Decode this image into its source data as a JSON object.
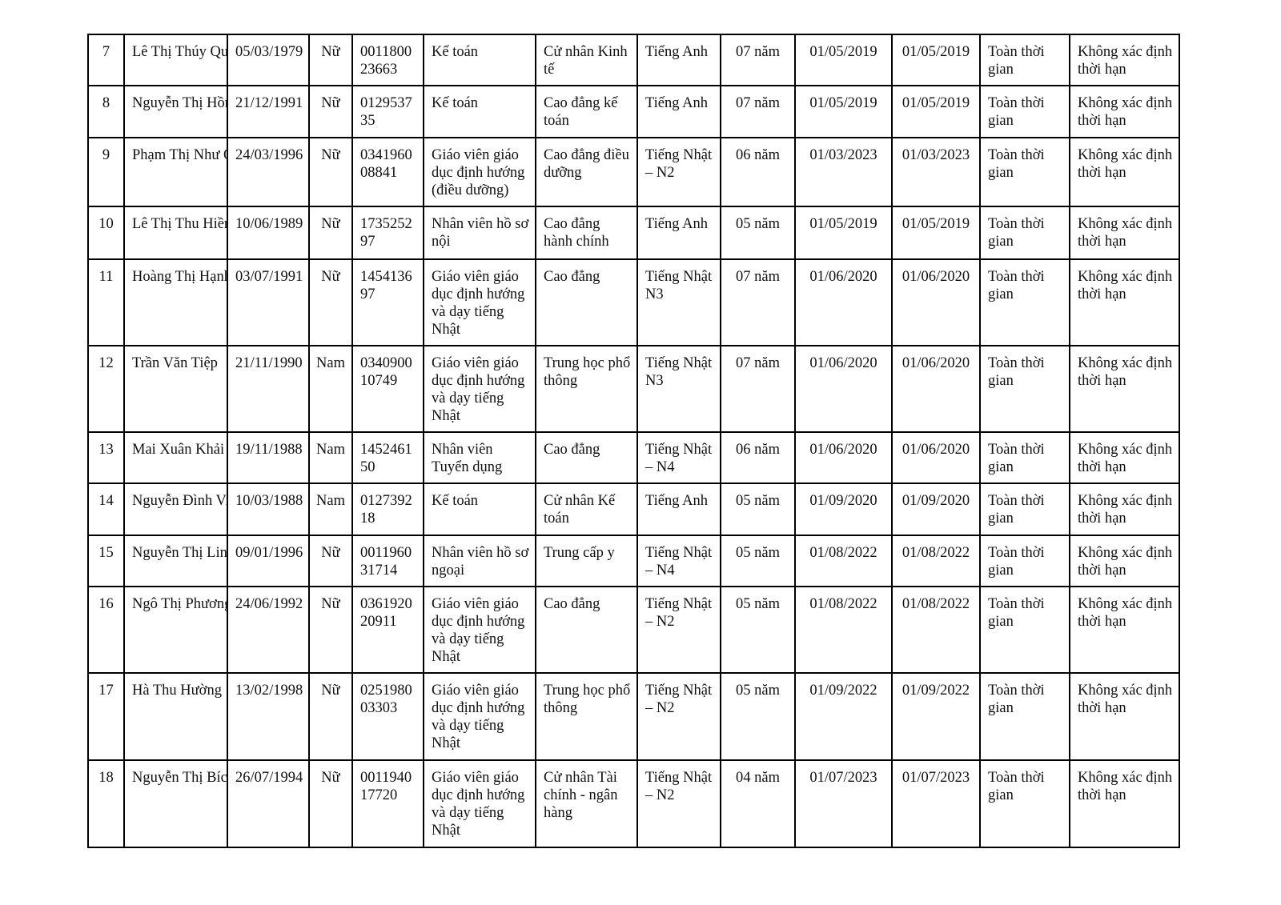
{
  "rows": [
    {
      "stt": "7",
      "name": "Lê Thị Thúy Quỳnh",
      "dob": "05/03/1979",
      "gender": "Nữ",
      "id": "0011800 23663",
      "position": "Kế toán",
      "degree": "Cử nhân Kinh tế",
      "language": "Tiếng Anh",
      "experience": "07 năm",
      "start": "01/05/2019",
      "contract": "01/05/2019",
      "type": "Toàn thời gian",
      "term": "Không xác định thời hạn"
    },
    {
      "stt": "8",
      "name": "Nguyễn Thị Hồng Ngọc",
      "dob": "21/12/1991",
      "gender": "Nữ",
      "id": "0129537 35",
      "position": "Kế toán",
      "degree": "Cao đẳng kế toán",
      "language": "Tiếng Anh",
      "experience": "07 năm",
      "start": "01/05/2019",
      "contract": "01/05/2019",
      "type": "Toàn thời gian",
      "term": "Không xác định thời hạn"
    },
    {
      "stt": "9",
      "name": "Phạm Thị Như Quỳnh",
      "dob": "24/03/1996",
      "gender": "Nữ",
      "id": "0341960 08841",
      "position": "Giáo viên giáo dục định hướng (điều dưỡng)",
      "degree": "Cao đẳng điều dưỡng",
      "language": "Tiếng Nhật – N2",
      "experience": "06 năm",
      "start": "01/03/2023",
      "contract": "01/03/2023",
      "type": "Toàn thời gian",
      "term": "Không xác định thời hạn"
    },
    {
      "stt": "10",
      "name": "Lê Thị Thu Hiền",
      "dob": "10/06/1989",
      "gender": "Nữ",
      "id": "1735252 97",
      "position": "Nhân viên hồ sơ nội",
      "degree": "Cao đẳng hành chính",
      "language": "Tiếng Anh",
      "experience": "05 năm",
      "start": "01/05/2019",
      "contract": "01/05/2019",
      "type": "Toàn thời gian",
      "term": "Không xác định thời hạn"
    },
    {
      "stt": "11",
      "name": "Hoàng Thị Hạnh",
      "dob": "03/07/1991",
      "gender": "Nữ",
      "id": "1454136 97",
      "position": "Giáo viên giáo dục định hướng và dạy tiếng Nhật",
      "degree": "Cao đẳng",
      "language": "Tiếng Nhật N3",
      "experience": "07 năm",
      "start": "01/06/2020",
      "contract": "01/06/2020",
      "type": "Toàn thời gian",
      "term": "Không xác định thời hạn"
    },
    {
      "stt": "12",
      "name": "Trần Văn Tiệp",
      "dob": "21/11/1990",
      "gender": "Nam",
      "id": "0340900 10749",
      "position": "Giáo viên giáo dục định hướng và dạy tiếng Nhật",
      "degree": "Trung học phổ thông",
      "language": "Tiếng Nhật N3",
      "experience": "07 năm",
      "start": "01/06/2020",
      "contract": "01/06/2020",
      "type": "Toàn thời gian",
      "term": "Không xác định thời hạn"
    },
    {
      "stt": "13",
      "name": "Mai Xuân Khải",
      "dob": "19/11/1988",
      "gender": "Nam",
      "id": "1452461 50",
      "position": "Nhân viên Tuyển dụng",
      "degree": "Cao đẳng",
      "language": "Tiếng Nhật – N4",
      "experience": "06 năm",
      "start": "01/06/2020",
      "contract": "01/06/2020",
      "type": "Toàn thời gian",
      "term": "Không xác định thời hạn"
    },
    {
      "stt": "14",
      "name": "Nguyễn Đình Việt",
      "dob": "10/03/1988",
      "gender": "Nam",
      "id": "0127392 18",
      "position": "Kế toán",
      "degree": "Cử nhân Kế toán",
      "language": "Tiếng Anh",
      "experience": "05 năm",
      "start": "01/09/2020",
      "contract": "01/09/2020",
      "type": "Toàn thời gian",
      "term": "Không xác định thời hạn"
    },
    {
      "stt": "15",
      "name": "Nguyễn Thị Linh Chi",
      "dob": "09/01/1996",
      "gender": "Nữ",
      "id": "0011960 31714",
      "position": "Nhân viên hồ sơ ngoại",
      "degree": "Trung cấp y",
      "language": "Tiếng Nhật – N4",
      "experience": "05 năm",
      "start": "01/08/2022",
      "contract": "01/08/2022",
      "type": "Toàn thời gian",
      "term": "Không xác định thời hạn"
    },
    {
      "stt": "16",
      "name": "Ngô Thị Phương",
      "dob": "24/06/1992",
      "gender": "Nữ",
      "id": "0361920 20911",
      "position": "Giáo viên giáo dục định hướng và dạy tiếng Nhật",
      "degree": "Cao đẳng",
      "language": "Tiếng Nhật – N2",
      "experience": "05 năm",
      "start": "01/08/2022",
      "contract": "01/08/2022",
      "type": "Toàn thời gian",
      "term": "Không xác định thời hạn"
    },
    {
      "stt": "17",
      "name": "Hà Thu Hường",
      "dob": "13/02/1998",
      "gender": "Nữ",
      "id": "0251980 03303",
      "position": "Giáo viên giáo dục định hướng và dạy tiếng Nhật",
      "degree": "Trung học phổ thông",
      "language": "Tiếng Nhật – N2",
      "experience": "05 năm",
      "start": "01/09/2022",
      "contract": "01/09/2022",
      "type": "Toàn thời gian",
      "term": "Không xác định thời hạn"
    },
    {
      "stt": "18",
      "name": "Nguyễn Thị Bích Phương",
      "dob": "26/07/1994",
      "gender": "Nữ",
      "id": "0011940 17720",
      "position": "Giáo viên giáo dục định hướng và dạy tiếng Nhật",
      "degree": "Cử nhân Tài chính - ngân hàng",
      "language": "Tiếng Nhật – N2",
      "experience": "04 năm",
      "start": "01/07/2023",
      "contract": "01/07/2023",
      "type": "Toàn thời gian",
      "term": "Không xác định thời hạn"
    }
  ]
}
